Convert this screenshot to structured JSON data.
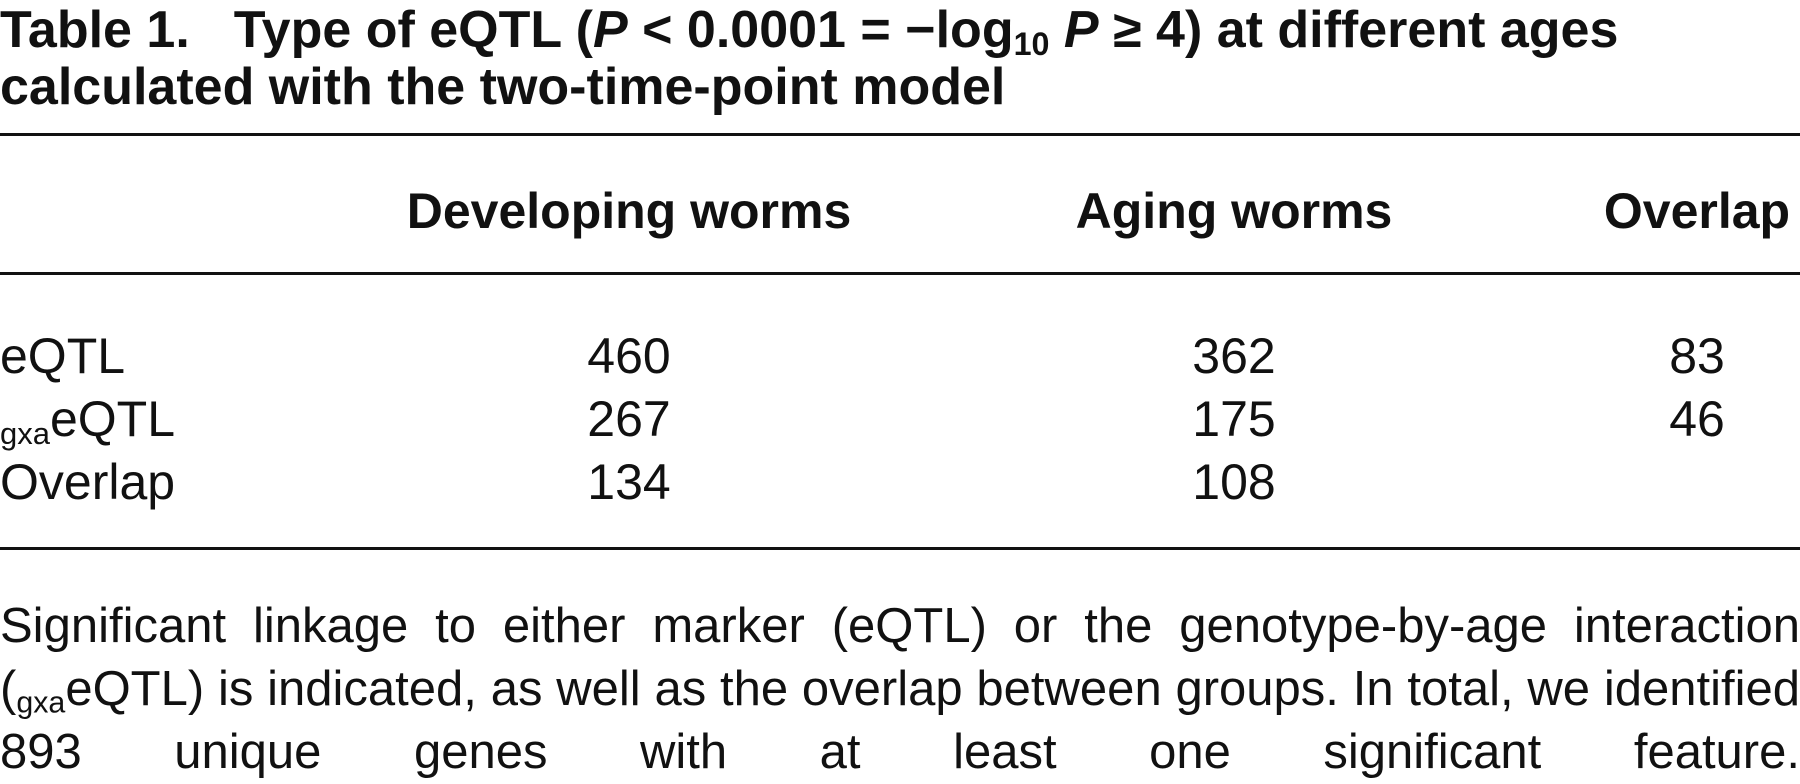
{
  "title": {
    "label": "Table 1.",
    "segments": [
      "Type of eQTL (",
      "P",
      " < 0.0001 = −log",
      "10",
      " ",
      "P",
      " ≥ 4) at different ages calculated with the two-time-point model"
    ]
  },
  "table": {
    "columns": [
      "Developing worms",
      "Aging worms",
      "Overlap"
    ],
    "rows": [
      {
        "label": "eQTL",
        "values": [
          460,
          362,
          83
        ]
      },
      {
        "label_sub": "gxa",
        "label": "eQTL",
        "values": [
          267,
          175,
          46
        ]
      },
      {
        "label": "Overlap",
        "values": [
          134,
          108
        ]
      }
    ]
  },
  "footnote": {
    "segments": [
      "Significant linkage to either marker (eQTL) or the genotype-by-age interaction (",
      "gxa",
      "eQTL) is indicated, as well as the overlap between groups. In total, we identified 893 unique genes with at least one significant feature."
    ]
  }
}
